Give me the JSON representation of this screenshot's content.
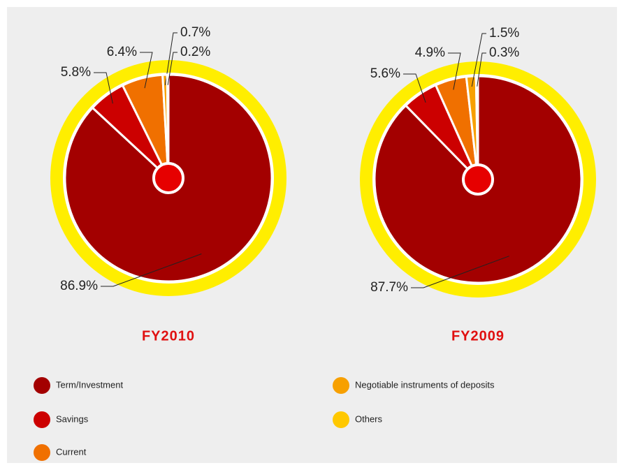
{
  "chart_data": [
    {
      "type": "pie",
      "title": "FY2010",
      "categories": [
        "Term/Investment",
        "Savings",
        "Current",
        "Negotiable instruments of deposits",
        "Others"
      ],
      "values": [
        86.9,
        5.8,
        6.4,
        0.7,
        0.2
      ],
      "value_labels": [
        "86.9%",
        "5.8%",
        "6.4%",
        "0.7%",
        "0.2%"
      ],
      "colors": [
        "#a30000",
        "#cc0000",
        "#f07000",
        "#f7a000",
        "#ffc800"
      ]
    },
    {
      "type": "pie",
      "title": "FY2009",
      "categories": [
        "Term/Investment",
        "Savings",
        "Current",
        "Negotiable instruments of deposits",
        "Others"
      ],
      "values": [
        87.7,
        5.6,
        4.9,
        1.5,
        0.3
      ],
      "value_labels": [
        "87.7%",
        "5.6%",
        "4.9%",
        "1.5%",
        "0.3%"
      ],
      "colors": [
        "#a30000",
        "#cc0000",
        "#f07000",
        "#f7a000",
        "#ffc800"
      ]
    }
  ]
}
